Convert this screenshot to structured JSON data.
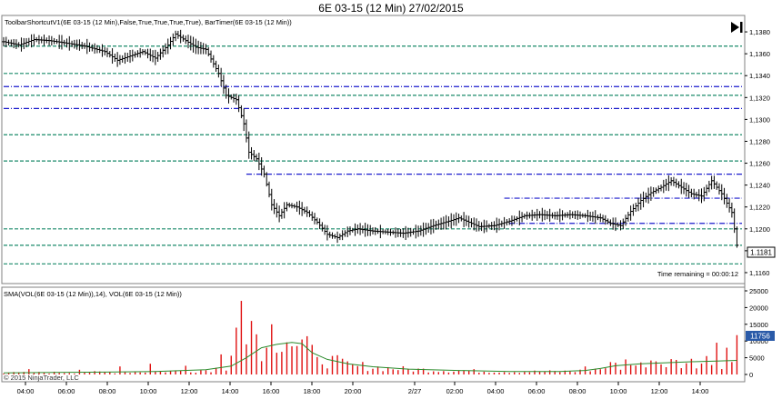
{
  "window": {
    "title": "6E 03-15 (12 Min)  27/02/2015"
  },
  "price_panel": {
    "indicator_label": "ToolbarShortcutV1(6E 03-15 (12 Min),False,True,True,True,True), BarTimer(6E 03-15 (12 Min))",
    "time_remaining": "Time remaining = 00:00:12",
    "last_price_label": "1.1181",
    "play_to_end_icon": "skip-to-end-icon"
  },
  "volume_panel": {
    "indicator_label": "SMA(VOL(6E 03-15 (12 Min)),14), VOL(6E 03-15 (12 Min))",
    "last_volume_label": "11756",
    "copyright": "© 2015 NinjaTrader, LLC"
  },
  "colors": {
    "bar": "#000000",
    "green_level": "#1a8a6a",
    "blue_level": "#1a1acc",
    "volume_bar": "#e01010",
    "sma": "#2a8a2a"
  },
  "chart_data": [
    {
      "type": "ohlc",
      "y_axis": {
        "ylim": [
          1.115,
          1.1395
        ],
        "ticks": [
          "1,1160",
          "1,1180",
          "1,1200",
          "1,1220",
          "1,1240",
          "1,1260",
          "1,1280",
          "1,1300",
          "1,1320",
          "1,1340",
          "1,1360",
          "1,1380"
        ]
      },
      "x_axis": {
        "ticks": [
          "04:00",
          "06:00",
          "08:00",
          "10:00",
          "12:00",
          "14:00",
          "16:00",
          "18:00",
          "20:00",
          "2/27",
          "02:00",
          "04:00",
          "06:00",
          "08:00",
          "10:00",
          "12:00",
          "14:00"
        ]
      },
      "close_path": [
        [
          0,
          1.1371
        ],
        [
          6,
          1.1368
        ],
        [
          12,
          1.1373
        ],
        [
          18,
          1.1372
        ],
        [
          24,
          1.137
        ],
        [
          32,
          1.1367
        ],
        [
          40,
          1.1362
        ],
        [
          45,
          1.1354
        ],
        [
          50,
          1.1358
        ],
        [
          55,
          1.1362
        ],
        [
          60,
          1.1356
        ],
        [
          65,
          1.1368
        ],
        [
          68,
          1.1378
        ],
        [
          72,
          1.1372
        ],
        [
          76,
          1.1366
        ],
        [
          80,
          1.1364
        ],
        [
          85,
          1.1342
        ],
        [
          88,
          1.1322
        ],
        [
          92,
          1.1318
        ],
        [
          95,
          1.1296
        ],
        [
          97,
          1.127
        ],
        [
          100,
          1.1264
        ],
        [
          103,
          1.125
        ],
        [
          106,
          1.1222
        ],
        [
          109,
          1.1212
        ],
        [
          112,
          1.1222
        ],
        [
          116,
          1.122
        ],
        [
          120,
          1.1215
        ],
        [
          124,
          1.1206
        ],
        [
          128,
          1.1195
        ],
        [
          132,
          1.1192
        ],
        [
          136,
          1.1198
        ],
        [
          140,
          1.12
        ],
        [
          146,
          1.1198
        ],
        [
          152,
          1.1197
        ],
        [
          158,
          1.1196
        ],
        [
          164,
          1.1198
        ],
        [
          170,
          1.1203
        ],
        [
          176,
          1.1207
        ],
        [
          180,
          1.121
        ],
        [
          184,
          1.1206
        ],
        [
          188,
          1.1202
        ],
        [
          194,
          1.1203
        ],
        [
          200,
          1.1207
        ],
        [
          206,
          1.1212
        ],
        [
          212,
          1.1213
        ],
        [
          218,
          1.1212
        ],
        [
          224,
          1.1213
        ],
        [
          230,
          1.1212
        ],
        [
          236,
          1.121
        ],
        [
          240,
          1.1205
        ],
        [
          244,
          1.1203
        ],
        [
          248,
          1.1216
        ],
        [
          252,
          1.1226
        ],
        [
          256,
          1.1233
        ],
        [
          260,
          1.1238
        ],
        [
          264,
          1.1244
        ],
        [
          268,
          1.1238
        ],
        [
          272,
          1.1232
        ],
        [
          276,
          1.123
        ],
        [
          280,
          1.1244
        ],
        [
          284,
          1.1232
        ],
        [
          288,
          1.1215
        ],
        [
          290,
          1.1185
        ]
      ],
      "level_lines": [
        {
          "value": 1.1367,
          "style": "green-dashed"
        },
        {
          "value": 1.1342,
          "style": "green-dashed"
        },
        {
          "value": 1.133,
          "style": "blue-dashdot"
        },
        {
          "value": 1.1322,
          "style": "green-dashed"
        },
        {
          "value": 1.131,
          "style": "blue-dashdot"
        },
        {
          "value": 1.1286,
          "style": "green-dashed"
        },
        {
          "value": 1.1262,
          "style": "green-dashed"
        },
        {
          "value": 1.125,
          "style": "blue-dashdot",
          "x_start": 96
        },
        {
          "value": 1.1228,
          "style": "blue-dashdot",
          "x_start": 198
        },
        {
          "value": 1.1205,
          "style": "blue-dashdot",
          "x_start": 200
        },
        {
          "value": 1.12,
          "style": "green-dashed"
        },
        {
          "value": 1.1185,
          "style": "green-dashed"
        },
        {
          "value": 1.1168,
          "style": "green-dashed"
        }
      ]
    },
    {
      "type": "bar+line",
      "y_axis": {
        "ylim": [
          0,
          25000
        ],
        "ticks": [
          "0",
          "5000",
          "10000",
          "15000",
          "20000",
          "25000"
        ]
      },
      "sma_path": [
        [
          0,
          500
        ],
        [
          20,
          600
        ],
        [
          40,
          700
        ],
        [
          60,
          900
        ],
        [
          80,
          1400
        ],
        [
          90,
          2500
        ],
        [
          96,
          5000
        ],
        [
          102,
          8000
        ],
        [
          108,
          9000
        ],
        [
          114,
          9600
        ],
        [
          118,
          9200
        ],
        [
          122,
          6500
        ],
        [
          128,
          4500
        ],
        [
          136,
          3200
        ],
        [
          146,
          2300
        ],
        [
          160,
          1600
        ],
        [
          180,
          1200
        ],
        [
          200,
          900
        ],
        [
          220,
          900
        ],
        [
          230,
          1200
        ],
        [
          236,
          1800
        ],
        [
          242,
          2600
        ],
        [
          252,
          3200
        ],
        [
          262,
          3500
        ],
        [
          272,
          3800
        ],
        [
          282,
          4000
        ],
        [
          290,
          4200
        ]
      ],
      "spikes": [
        [
          10,
          1600
        ],
        [
          30,
          1400
        ],
        [
          47,
          2400
        ],
        [
          58,
          3200
        ],
        [
          72,
          2600
        ],
        [
          86,
          6000
        ],
        [
          90,
          5600
        ],
        [
          93,
          14000
        ],
        [
          95,
          22000
        ],
        [
          97,
          9000
        ],
        [
          99,
          16000
        ],
        [
          101,
          12000
        ],
        [
          104,
          8000
        ],
        [
          106,
          15000
        ],
        [
          109,
          6500
        ],
        [
          113,
          9600
        ],
        [
          117,
          8500
        ],
        [
          125,
          5200
        ],
        [
          140,
          2500
        ],
        [
          231,
          2400
        ],
        [
          240,
          3700
        ],
        [
          246,
          4500
        ],
        [
          252,
          3600
        ],
        [
          260,
          3000
        ],
        [
          264,
          4600
        ],
        [
          278,
          5500
        ],
        [
          282,
          9500
        ],
        [
          286,
          8000
        ],
        [
          290,
          11756
        ]
      ]
    }
  ]
}
